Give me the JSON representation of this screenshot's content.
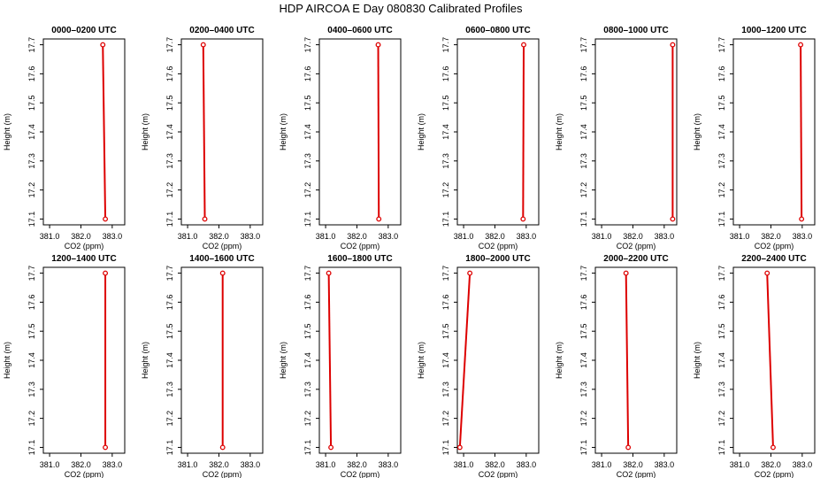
{
  "title": "HDP AIRCOA E  Day 080830  Calibrated Profiles",
  "colors": {
    "line": "#dd0000",
    "point": "#dd0000",
    "axis": "#000000"
  },
  "chart_data": [
    {
      "type": "line",
      "title": "0000–0200 UTC",
      "xlabel": "CO2 (ppm)",
      "ylabel": "Height (m)",
      "xlim": [
        380.8,
        383.4
      ],
      "ylim": [
        17.08,
        17.72
      ],
      "xticks": [
        "381.0",
        "382.0",
        "383.0"
      ],
      "yticks": [
        "17.1",
        "17.2",
        "17.3",
        "17.4",
        "17.5",
        "17.6",
        "17.7"
      ],
      "x": [
        382.7,
        382.78
      ],
      "y": [
        17.7,
        17.1
      ],
      "grid": false
    },
    {
      "type": "line",
      "title": "0200–0400 UTC",
      "xlabel": "CO2 (ppm)",
      "ylabel": "Height (m)",
      "xlim": [
        380.8,
        383.4
      ],
      "ylim": [
        17.08,
        17.72
      ],
      "xticks": [
        "381.0",
        "382.0",
        "383.0"
      ],
      "yticks": [
        "17.1",
        "17.2",
        "17.3",
        "17.4",
        "17.5",
        "17.6",
        "17.7"
      ],
      "x": [
        381.5,
        381.55
      ],
      "y": [
        17.7,
        17.1
      ],
      "grid": false
    },
    {
      "type": "line",
      "title": "0400–0600 UTC",
      "xlabel": "CO2 (ppm)",
      "ylabel": "Height (m)",
      "xlim": [
        380.8,
        383.4
      ],
      "ylim": [
        17.08,
        17.72
      ],
      "xticks": [
        "381.0",
        "382.0",
        "383.0"
      ],
      "yticks": [
        "17.1",
        "17.2",
        "17.3",
        "17.4",
        "17.5",
        "17.6",
        "17.7"
      ],
      "x": [
        382.68,
        382.7
      ],
      "y": [
        17.7,
        17.1
      ],
      "grid": false
    },
    {
      "type": "line",
      "title": "0600–0800 UTC",
      "xlabel": "CO2 (ppm)",
      "ylabel": "Height (m)",
      "xlim": [
        380.8,
        383.4
      ],
      "ylim": [
        17.08,
        17.72
      ],
      "xticks": [
        "381.0",
        "382.0",
        "383.0"
      ],
      "yticks": [
        "17.1",
        "17.2",
        "17.3",
        "17.4",
        "17.5",
        "17.6",
        "17.7"
      ],
      "x": [
        382.92,
        382.9
      ],
      "y": [
        17.7,
        17.1
      ],
      "grid": false
    },
    {
      "type": "line",
      "title": "0800–1000 UTC",
      "xlabel": "CO2 (ppm)",
      "ylabel": "Height (m)",
      "xlim": [
        380.8,
        383.4
      ],
      "ylim": [
        17.08,
        17.72
      ],
      "xticks": [
        "381.0",
        "382.0",
        "383.0"
      ],
      "yticks": [
        "17.1",
        "17.2",
        "17.3",
        "17.4",
        "17.5",
        "17.6",
        "17.7"
      ],
      "x": [
        383.27,
        383.27
      ],
      "y": [
        17.7,
        17.1
      ],
      "grid": false
    },
    {
      "type": "line",
      "title": "1000–1200 UTC",
      "xlabel": "CO2 (ppm)",
      "ylabel": "Height (m)",
      "xlim": [
        380.8,
        383.4
      ],
      "ylim": [
        17.08,
        17.72
      ],
      "xticks": [
        "381.0",
        "382.0",
        "383.0"
      ],
      "yticks": [
        "17.1",
        "17.2",
        "17.3",
        "17.4",
        "17.5",
        "17.6",
        "17.7"
      ],
      "x": [
        382.95,
        382.98
      ],
      "y": [
        17.7,
        17.1
      ],
      "grid": false
    },
    {
      "type": "line",
      "title": "1200–1400 UTC",
      "xlabel": "CO2 (ppm)",
      "ylabel": "Height (m)",
      "xlim": [
        380.8,
        383.4
      ],
      "ylim": [
        17.08,
        17.72
      ],
      "xticks": [
        "381.0",
        "382.0",
        "383.0"
      ],
      "yticks": [
        "17.1",
        "17.2",
        "17.3",
        "17.4",
        "17.5",
        "17.6",
        "17.7"
      ],
      "x": [
        382.78,
        382.78
      ],
      "y": [
        17.7,
        17.1
      ],
      "grid": false
    },
    {
      "type": "line",
      "title": "1400–1600 UTC",
      "xlabel": "CO2 (ppm)",
      "ylabel": "Height (m)",
      "xlim": [
        380.8,
        383.4
      ],
      "ylim": [
        17.08,
        17.72
      ],
      "xticks": [
        "381.0",
        "382.0",
        "383.0"
      ],
      "yticks": [
        "17.1",
        "17.2",
        "17.3",
        "17.4",
        "17.5",
        "17.6",
        "17.7"
      ],
      "x": [
        382.12,
        382.12
      ],
      "y": [
        17.7,
        17.1
      ],
      "grid": false
    },
    {
      "type": "line",
      "title": "1600–1800 UTC",
      "xlabel": "CO2 (ppm)",
      "ylabel": "Height (m)",
      "xlim": [
        380.8,
        383.4
      ],
      "ylim": [
        17.08,
        17.72
      ],
      "xticks": [
        "381.0",
        "382.0",
        "383.0"
      ],
      "yticks": [
        "17.1",
        "17.2",
        "17.3",
        "17.4",
        "17.5",
        "17.6",
        "17.7"
      ],
      "x": [
        381.1,
        381.17
      ],
      "y": [
        17.7,
        17.1
      ],
      "grid": false
    },
    {
      "type": "line",
      "title": "1800–2000 UTC",
      "xlabel": "CO2 (ppm)",
      "ylabel": "Height (m)",
      "xlim": [
        380.8,
        383.4
      ],
      "ylim": [
        17.08,
        17.72
      ],
      "xticks": [
        "381.0",
        "382.0",
        "383.0"
      ],
      "yticks": [
        "17.1",
        "17.2",
        "17.3",
        "17.4",
        "17.5",
        "17.6",
        "17.7"
      ],
      "x": [
        381.2,
        380.88
      ],
      "y": [
        17.7,
        17.1
      ],
      "grid": false
    },
    {
      "type": "line",
      "title": "2000–2200 UTC",
      "xlabel": "CO2 (ppm)",
      "ylabel": "Height (m)",
      "xlim": [
        380.8,
        383.4
      ],
      "ylim": [
        17.08,
        17.72
      ],
      "xticks": [
        "381.0",
        "382.0",
        "383.0"
      ],
      "yticks": [
        "17.1",
        "17.2",
        "17.3",
        "17.4",
        "17.5",
        "17.6",
        "17.7"
      ],
      "x": [
        381.78,
        381.85
      ],
      "y": [
        17.7,
        17.1
      ],
      "grid": false
    },
    {
      "type": "line",
      "title": "2200–2400 UTC",
      "xlabel": "CO2 (ppm)",
      "ylabel": "Height (m)",
      "xlim": [
        380.8,
        383.4
      ],
      "ylim": [
        17.08,
        17.72
      ],
      "xticks": [
        "381.0",
        "382.0",
        "383.0"
      ],
      "yticks": [
        "17.1",
        "17.2",
        "17.3",
        "17.4",
        "17.5",
        "17.6",
        "17.7"
      ],
      "x": [
        381.88,
        382.07
      ],
      "y": [
        17.7,
        17.1
      ],
      "grid": false
    }
  ]
}
